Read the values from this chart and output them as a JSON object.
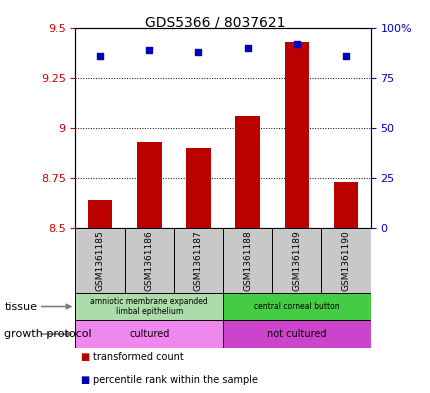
{
  "title": "GDS5366 / 8037621",
  "samples": [
    "GSM1361185",
    "GSM1361186",
    "GSM1361187",
    "GSM1361188",
    "GSM1361189",
    "GSM1361190"
  ],
  "red_values": [
    8.64,
    8.93,
    8.9,
    9.06,
    9.43,
    8.73
  ],
  "blue_values": [
    86,
    89,
    88,
    90,
    92,
    86
  ],
  "ylim_left": [
    8.5,
    9.5
  ],
  "ylim_right": [
    0,
    100
  ],
  "yticks_left": [
    8.5,
    8.75,
    9.0,
    9.25,
    9.5
  ],
  "ytick_labels_left": [
    "8.5",
    "8.75",
    "9",
    "9.25",
    "9.5"
  ],
  "yticks_right": [
    0,
    25,
    50,
    75,
    100
  ],
  "ytick_labels_right": [
    "0",
    "25",
    "50",
    "75",
    "100%"
  ],
  "tissue_groups": [
    {
      "label": "amniotic membrane expanded\nlimbal epithelium",
      "start": 0,
      "end": 3,
      "color": "#aaddaa"
    },
    {
      "label": "central corneal button",
      "start": 3,
      "end": 6,
      "color": "#44cc44"
    }
  ],
  "growth_groups": [
    {
      "label": "cultured",
      "start": 0,
      "end": 3,
      "color": "#ee88ee"
    },
    {
      "label": "not cultured",
      "start": 3,
      "end": 6,
      "color": "#cc44cc"
    }
  ],
  "tissue_label": "tissue",
  "growth_label": "growth protocol",
  "legend_red": "transformed count",
  "legend_blue": "percentile rank within the sample",
  "bar_color": "#bb0000",
  "dot_color": "#0000bb",
  "bar_width": 0.5,
  "left_axis_color": "#cc0000",
  "right_axis_color": "#0000cc",
  "grid_color": "black",
  "sample_box_color": "#c8c8c8"
}
